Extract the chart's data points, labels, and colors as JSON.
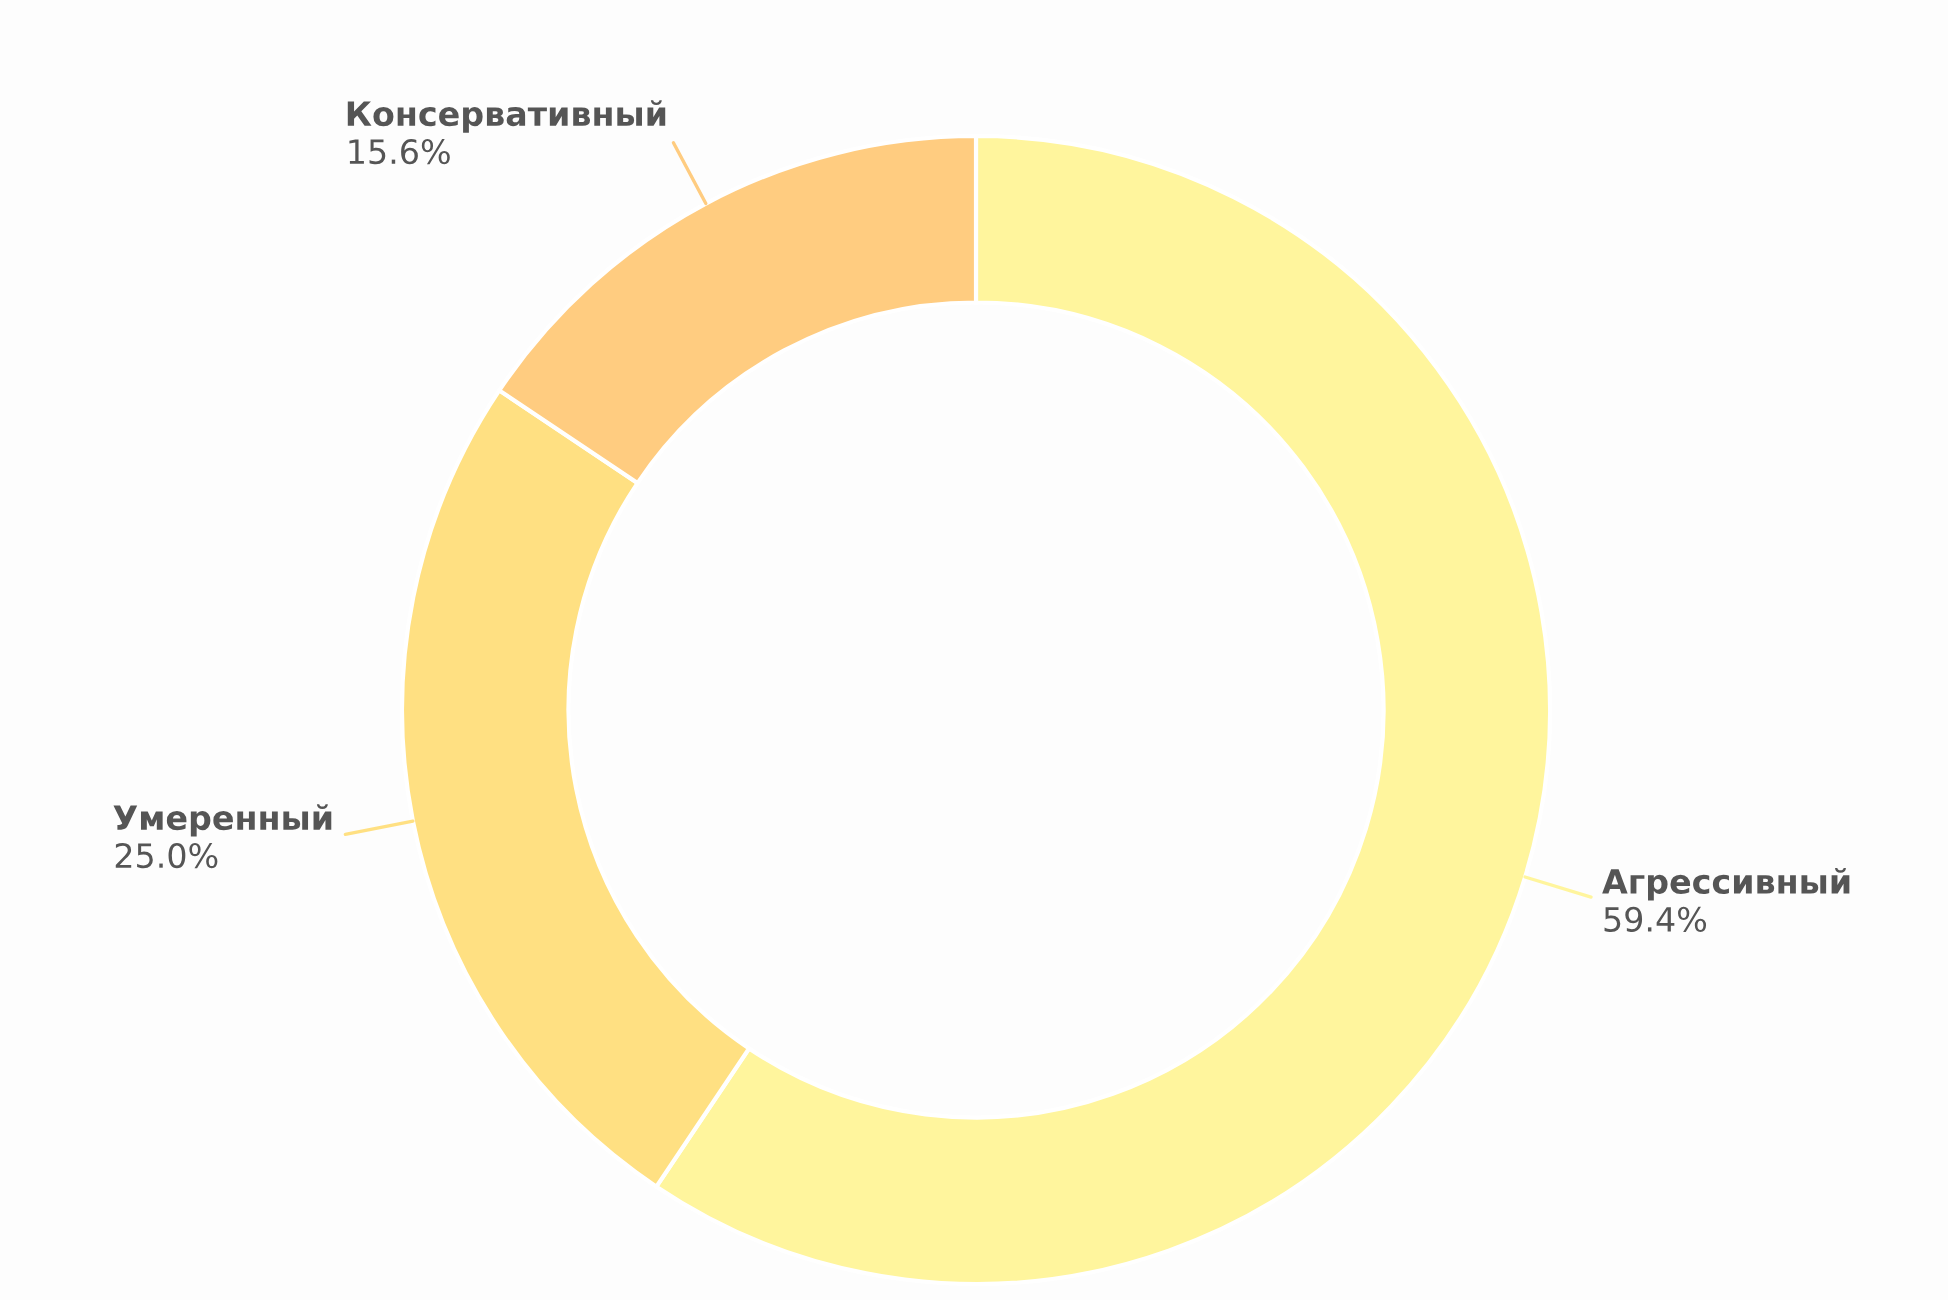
{
  "chart_data": {
    "type": "donut",
    "categories": [
      "Агрессивный",
      "Умеренный",
      "Консервативный"
    ],
    "values": [
      59.4,
      25.0,
      15.6
    ],
    "colors": [
      "#fff59d",
      "#ffe082",
      "#ffcc80"
    ],
    "value_labels": [
      "59.4%",
      "25.0%",
      "15.6%"
    ]
  }
}
